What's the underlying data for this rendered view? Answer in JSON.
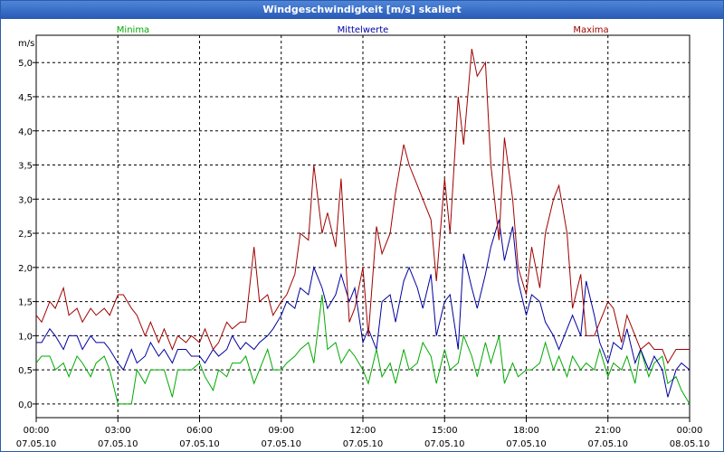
{
  "chart_data": {
    "type": "line",
    "title": "Windgeschwindigkeit [m/s] skaliert",
    "ylabel": "m/s",
    "xlabel": "",
    "ylim": [
      -0.2,
      5.4
    ],
    "xlim": [
      0,
      24
    ],
    "y_ticks": [
      "0,0",
      "0,5",
      "1,0",
      "1,5",
      "2,0",
      "2,5",
      "3,0",
      "3,5",
      "4,0",
      "4,5",
      "5,0"
    ],
    "x_ticks": [
      {
        "time": "00:00",
        "date": "07.05.10"
      },
      {
        "time": "03:00",
        "date": "07.05.10"
      },
      {
        "time": "06:00",
        "date": "07.05.10"
      },
      {
        "time": "09:00",
        "date": "07.05.10"
      },
      {
        "time": "12:00",
        "date": "07.05.10"
      },
      {
        "time": "15:00",
        "date": "07.05.10"
      },
      {
        "time": "18:00",
        "date": "07.05.10"
      },
      {
        "time": "21:00",
        "date": "07.05.10"
      },
      {
        "time": "00:00",
        "date": "08.05.10"
      }
    ],
    "grid": true,
    "series": [
      {
        "name": "Minima",
        "color": "#00aa00",
        "x": [
          0.0,
          0.2,
          0.5,
          0.7,
          1.0,
          1.2,
          1.5,
          1.7,
          2.0,
          2.2,
          2.5,
          2.7,
          3.0,
          3.2,
          3.5,
          3.7,
          4.0,
          4.2,
          4.5,
          4.7,
          5.0,
          5.2,
          5.5,
          5.7,
          6.0,
          6.2,
          6.5,
          6.7,
          7.0,
          7.2,
          7.5,
          7.7,
          8.0,
          8.2,
          8.5,
          8.7,
          9.0,
          9.2,
          9.5,
          9.7,
          10.0,
          10.2,
          10.5,
          10.7,
          11.0,
          11.2,
          11.5,
          11.7,
          12.0,
          12.2,
          12.5,
          12.7,
          13.0,
          13.2,
          13.5,
          13.7,
          14.0,
          14.2,
          14.5,
          14.7,
          15.0,
          15.2,
          15.5,
          15.7,
          16.0,
          16.2,
          16.5,
          16.7,
          17.0,
          17.2,
          17.5,
          17.7,
          18.0,
          18.2,
          18.5,
          18.7,
          19.0,
          19.2,
          19.5,
          19.7,
          20.0,
          20.2,
          20.5,
          20.7,
          21.0,
          21.2,
          21.5,
          21.7,
          22.0,
          22.2,
          22.5,
          22.7,
          23.0,
          23.2,
          23.5,
          23.7,
          24.0
        ],
        "values": [
          0.6,
          0.7,
          0.7,
          0.5,
          0.6,
          0.4,
          0.7,
          0.6,
          0.4,
          0.6,
          0.7,
          0.5,
          0.0,
          0.0,
          0.0,
          0.5,
          0.3,
          0.5,
          0.5,
          0.5,
          0.1,
          0.5,
          0.5,
          0.5,
          0.6,
          0.4,
          0.2,
          0.5,
          0.4,
          0.6,
          0.6,
          0.7,
          0.3,
          0.5,
          0.8,
          0.5,
          0.5,
          0.6,
          0.7,
          0.8,
          0.9,
          0.6,
          1.6,
          0.8,
          0.9,
          0.6,
          0.8,
          0.7,
          0.5,
          0.3,
          0.8,
          0.4,
          0.6,
          0.3,
          0.8,
          0.5,
          0.6,
          0.9,
          0.7,
          0.3,
          0.8,
          0.5,
          0.6,
          1.0,
          0.7,
          0.4,
          0.9,
          0.6,
          1.0,
          0.3,
          0.6,
          0.4,
          0.5,
          0.5,
          0.6,
          0.9,
          0.5,
          0.7,
          0.4,
          0.7,
          0.5,
          0.6,
          0.5,
          0.8,
          0.4,
          0.6,
          0.5,
          0.7,
          0.3,
          0.8,
          0.4,
          0.6,
          0.7,
          0.3,
          0.4,
          0.2,
          0.0
        ]
      },
      {
        "name": "Mittelwerte",
        "color": "#0000a0",
        "x": [
          0.0,
          0.2,
          0.5,
          0.7,
          1.0,
          1.2,
          1.5,
          1.7,
          2.0,
          2.2,
          2.5,
          2.7,
          3.0,
          3.2,
          3.5,
          3.7,
          4.0,
          4.2,
          4.5,
          4.7,
          5.0,
          5.2,
          5.5,
          5.7,
          6.0,
          6.2,
          6.5,
          6.7,
          7.0,
          7.2,
          7.5,
          7.7,
          8.0,
          8.2,
          8.5,
          8.7,
          9.0,
          9.2,
          9.5,
          9.7,
          10.0,
          10.2,
          10.5,
          10.7,
          11.0,
          11.2,
          11.5,
          11.7,
          12.0,
          12.2,
          12.5,
          12.7,
          13.0,
          13.2,
          13.5,
          13.7,
          14.0,
          14.2,
          14.5,
          14.7,
          15.0,
          15.2,
          15.5,
          15.7,
          16.0,
          16.2,
          16.5,
          16.7,
          17.0,
          17.2,
          17.5,
          17.7,
          18.0,
          18.2,
          18.5,
          18.7,
          19.0,
          19.2,
          19.5,
          19.7,
          20.0,
          20.2,
          20.5,
          20.7,
          21.0,
          21.2,
          21.5,
          21.7,
          22.0,
          22.2,
          22.5,
          22.7,
          23.0,
          23.2,
          23.5,
          23.7,
          24.0
        ],
        "values": [
          0.9,
          0.9,
          1.1,
          1.0,
          0.8,
          1.0,
          1.0,
          0.8,
          1.0,
          0.9,
          0.9,
          0.8,
          0.6,
          0.5,
          0.8,
          0.6,
          0.7,
          0.9,
          0.7,
          0.8,
          0.6,
          0.8,
          0.8,
          0.7,
          0.7,
          0.6,
          0.8,
          0.7,
          0.8,
          1.0,
          0.8,
          0.9,
          0.8,
          0.9,
          1.0,
          1.1,
          1.3,
          1.5,
          1.4,
          1.7,
          1.6,
          2.0,
          1.7,
          1.4,
          1.6,
          1.9,
          1.5,
          1.7,
          0.9,
          1.1,
          0.8,
          1.5,
          1.6,
          1.2,
          1.8,
          2.0,
          1.7,
          1.4,
          1.9,
          1.0,
          1.5,
          1.6,
          0.8,
          2.2,
          1.7,
          1.4,
          1.9,
          2.3,
          2.7,
          2.1,
          2.6,
          1.8,
          1.3,
          1.6,
          1.5,
          1.2,
          1.0,
          0.8,
          1.1,
          1.3,
          1.0,
          1.8,
          1.3,
          0.9,
          0.6,
          0.9,
          0.8,
          1.1,
          0.6,
          0.8,
          0.5,
          0.7,
          0.5,
          0.1,
          0.5,
          0.6,
          0.5
        ]
      },
      {
        "name": "Maxima",
        "color": "#a00000",
        "x": [
          0.0,
          0.2,
          0.5,
          0.7,
          1.0,
          1.2,
          1.5,
          1.7,
          2.0,
          2.2,
          2.5,
          2.7,
          3.0,
          3.2,
          3.5,
          3.7,
          4.0,
          4.2,
          4.5,
          4.7,
          5.0,
          5.2,
          5.5,
          5.7,
          6.0,
          6.2,
          6.5,
          6.7,
          7.0,
          7.2,
          7.5,
          7.7,
          8.0,
          8.2,
          8.5,
          8.7,
          9.0,
          9.2,
          9.5,
          9.7,
          10.0,
          10.2,
          10.5,
          10.7,
          11.0,
          11.2,
          11.5,
          11.7,
          12.0,
          12.2,
          12.5,
          12.7,
          13.0,
          13.2,
          13.5,
          13.7,
          14.0,
          14.2,
          14.5,
          14.7,
          15.0,
          15.2,
          15.5,
          15.7,
          16.0,
          16.2,
          16.5,
          16.7,
          17.0,
          17.2,
          17.5,
          17.7,
          18.0,
          18.2,
          18.5,
          18.7,
          19.0,
          19.2,
          19.5,
          19.7,
          20.0,
          20.2,
          20.5,
          20.7,
          21.0,
          21.2,
          21.5,
          21.7,
          22.0,
          22.2,
          22.5,
          22.7,
          23.0,
          23.2,
          23.5,
          23.7,
          24.0
        ],
        "values": [
          1.3,
          1.2,
          1.5,
          1.4,
          1.7,
          1.3,
          1.4,
          1.2,
          1.4,
          1.3,
          1.4,
          1.3,
          1.6,
          1.6,
          1.4,
          1.3,
          1.0,
          1.2,
          0.9,
          1.1,
          0.8,
          1.0,
          0.9,
          1.0,
          0.9,
          1.1,
          0.8,
          0.9,
          1.2,
          1.1,
          1.2,
          1.2,
          2.3,
          1.5,
          1.6,
          1.3,
          1.5,
          1.6,
          1.9,
          2.5,
          2.4,
          3.5,
          2.5,
          2.8,
          2.3,
          3.3,
          1.2,
          1.4,
          2.0,
          1.0,
          2.6,
          2.2,
          2.5,
          3.1,
          3.8,
          3.5,
          3.2,
          3.0,
          2.7,
          1.8,
          3.3,
          2.5,
          4.5,
          3.8,
          5.2,
          4.8,
          5.0,
          3.5,
          2.4,
          3.9,
          3.0,
          2.0,
          1.6,
          2.3,
          1.7,
          2.5,
          3.0,
          3.2,
          2.5,
          1.4,
          1.9,
          1.0,
          1.0,
          1.2,
          1.5,
          1.4,
          0.9,
          1.3,
          1.0,
          0.8,
          0.9,
          0.8,
          0.8,
          0.6,
          0.8,
          0.8,
          0.8
        ]
      }
    ]
  }
}
